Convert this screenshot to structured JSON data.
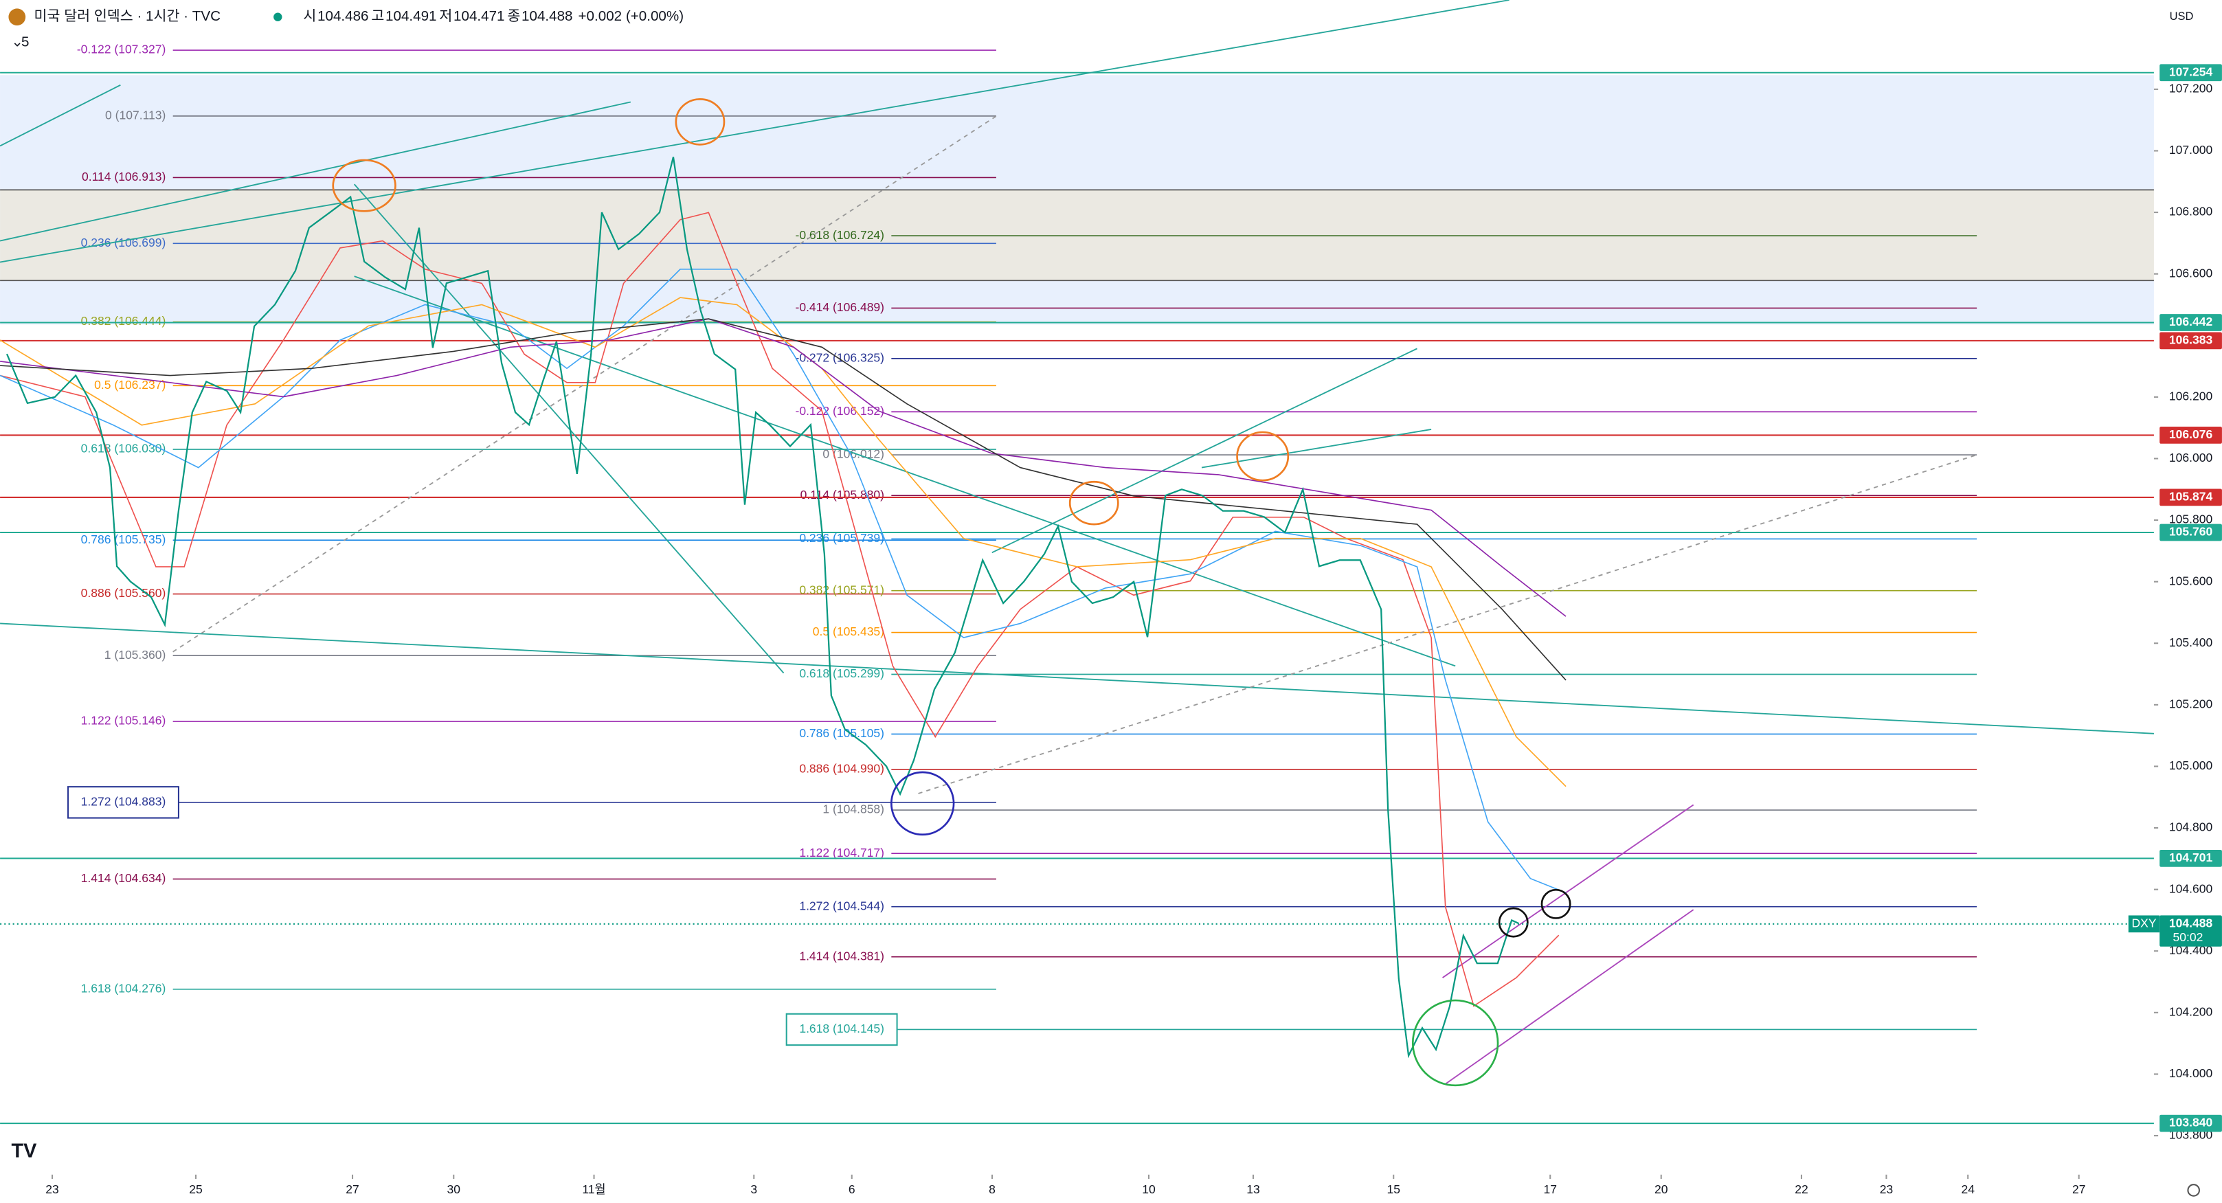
{
  "header": {
    "title": "미국 달러 인덱스 · 1시간 · TVC",
    "ohlc": [
      {
        "key": "시",
        "value": 104.486
      },
      {
        "key": "고",
        "value": 104.491
      },
      {
        "key": "저",
        "value": 104.471
      },
      {
        "key": "종",
        "value": 104.488
      }
    ],
    "change": "+0.002 (+0.00%)",
    "indicators": "5",
    "currency": "USD"
  },
  "chart_data": {
    "type": "line",
    "color": "#089981",
    "x": [
      2.1,
      8.4,
      16.8,
      23.2,
      29.5,
      33.7,
      35.8,
      40.0,
      46.3,
      50.5,
      54.7,
      58.9,
      63.2,
      69.5,
      73.7,
      77.9,
      84.2,
      90.5,
      94.7,
      101.1,
      107.4,
      111.6,
      117.9,
      124.2,
      128.4,
      132.6,
      136.8,
      143.2,
      149.5,
      153.7,
      157.9,
      162.1,
      166.3,
      170.5,
      176.8,
      181.1,
      184.4,
      189.5,
      195.8,
      202.1,
      206.3,
      210.5,
      214.7,
      218.9,
      225.3,
      228.2,
      231.6,
      235.8,
      242.1,
      248.4,
      252.6,
      254.7,
      258.9,
      265.3,
      271.6,
      275.8,
      280.0,
      286.3,
      292.6,
      301.1,
      307.4,
      313.7,
      320.0,
      324.2,
      328.4,
      334.7,
      341.1,
      347.4,
      351.6,
      357.1,
      362.1,
      368.4,
      374.7,
      381.1,
      387.4,
      393.7,
      399.2,
      404.2,
      410.5,
      416.8,
      423.2,
      425.3,
      428.6,
      431.6,
      435.8,
      440.0,
      444.2,
      448.4,
      452.6,
      458.9,
      463.2,
      465.3
    ],
    "values": [
      106.34,
      106.18,
      106.2,
      106.27,
      106.15,
      105.97,
      105.65,
      105.6,
      105.55,
      105.46,
      105.83,
      106.15,
      106.25,
      106.22,
      106.15,
      106.43,
      106.5,
      106.61,
      106.75,
      106.8,
      106.85,
      106.64,
      106.59,
      106.55,
      106.75,
      106.36,
      106.57,
      106.59,
      106.61,
      106.31,
      106.15,
      106.11,
      106.25,
      106.38,
      105.95,
      106.34,
      106.8,
      106.68,
      106.73,
      106.8,
      106.98,
      106.68,
      106.48,
      106.34,
      106.29,
      105.85,
      106.15,
      106.11,
      106.04,
      106.11,
      105.69,
      105.23,
      105.12,
      105.07,
      105.0,
      104.91,
      105.02,
      105.25,
      105.37,
      105.67,
      105.53,
      105.6,
      105.69,
      105.78,
      105.6,
      105.53,
      105.55,
      105.6,
      105.42,
      105.88,
      105.9,
      105.88,
      105.83,
      105.83,
      105.81,
      105.76,
      105.9,
      105.65,
      105.67,
      105.67,
      105.51,
      104.86,
      104.31,
      104.06,
      104.15,
      104.08,
      104.22,
      104.45,
      104.36,
      104.36,
      104.5,
      104.49
    ],
    "xlim": [
      0,
      660
    ],
    "xticks": [
      {
        "value": 16,
        "label": "23"
      },
      {
        "value": 60,
        "label": "25"
      },
      {
        "value": 108,
        "label": "27"
      },
      {
        "value": 139,
        "label": "30"
      },
      {
        "value": 182,
        "label": "11월"
      },
      {
        "value": 231,
        "label": "3"
      },
      {
        "value": 261,
        "label": "6"
      },
      {
        "value": 304,
        "label": "8"
      },
      {
        "value": 352,
        "label": "10"
      },
      {
        "value": 384,
        "label": "13"
      },
      {
        "value": 427,
        "label": "15"
      },
      {
        "value": 475,
        "label": "17"
      },
      {
        "value": 509,
        "label": "20"
      },
      {
        "value": 552,
        "label": "22"
      },
      {
        "value": 578,
        "label": "23"
      },
      {
        "value": 603,
        "label": "24"
      },
      {
        "value": 637,
        "label": "27"
      }
    ],
    "ylim": [
      103.77,
      107.49
    ],
    "yticks": [
      {
        "value": 103.8,
        "label": "103.800"
      },
      {
        "value": 104.0,
        "label": "104.000"
      },
      {
        "value": 104.2,
        "label": "104.200"
      },
      {
        "value": 104.4,
        "label": "104.400"
      },
      {
        "value": 104.6,
        "label": "104.600"
      },
      {
        "value": 104.8,
        "label": "104.800"
      },
      {
        "value": 105.0,
        "label": "105.000"
      },
      {
        "value": 105.2,
        "label": "105.200"
      },
      {
        "value": 105.4,
        "label": "105.400"
      },
      {
        "value": 105.6,
        "label": "105.600"
      },
      {
        "value": 105.8,
        "label": "105.800"
      },
      {
        "value": 106.0,
        "label": "106.000"
      },
      {
        "value": 106.2,
        "label": "106.200"
      },
      {
        "value": 106.6,
        "label": "106.600"
      },
      {
        "value": 106.8,
        "label": "106.800"
      },
      {
        "value": 107.0,
        "label": "107.000"
      },
      {
        "value": 107.2,
        "label": "107.200"
      }
    ],
    "grid": false,
    "price_tags": [
      {
        "value": 107.254,
        "label": "107.254",
        "color": "#22ab94"
      },
      {
        "value": 106.442,
        "label": "106.442",
        "color": "#22ab94"
      },
      {
        "value": 106.383,
        "label": "106.383",
        "color": "#d32f2f"
      },
      {
        "value": 106.076,
        "label": "106.076",
        "color": "#d32f2f"
      },
      {
        "value": 105.874,
        "label": "105.874",
        "color": "#d32f2f"
      },
      {
        "value": 105.76,
        "label": "105.760",
        "color": "#22ab94"
      },
      {
        "value": 104.701,
        "label": "104.701",
        "color": "#22ab94"
      },
      {
        "value": 103.84,
        "label": "103.840",
        "color": "#22ab94"
      }
    ],
    "last": {
      "symbol": "DXY",
      "value": 104.488,
      "countdown": "50:02",
      "color": "#089981"
    },
    "fib_left": [
      {
        "label": "-0.122 (107.327)",
        "value": 107.327,
        "color": "#9c27b0"
      },
      {
        "label": "0 (107.113)",
        "value": 107.113,
        "color": "#787b86"
      },
      {
        "label": "0.114 (106.913)",
        "value": 106.913,
        "color": "#880e4f"
      },
      {
        "label": "0.236 (106.699)",
        "value": 106.699,
        "color": "#3d6bc8"
      },
      {
        "label": "0.382 (106.444)",
        "value": 106.444,
        "color": "#9aa521"
      },
      {
        "label": "0.5 (106.237)",
        "value": 106.237,
        "color": "#ff9800"
      },
      {
        "label": "0.618 (106.030)",
        "value": 106.03,
        "color": "#26a69a"
      },
      {
        "label": "0.786 (105.735)",
        "value": 105.735,
        "color": "#1e88e5"
      },
      {
        "label": "0.886 (105.560)",
        "value": 105.56,
        "color": "#c62828"
      },
      {
        "label": "1 (105.360)",
        "value": 105.36,
        "color": "#787b86"
      },
      {
        "label": "1.122 (105.146)",
        "value": 105.146,
        "color": "#9c27b0"
      },
      {
        "label": "1.272 (104.883)",
        "value": 104.883,
        "color": "#283593",
        "boxed": true
      },
      {
        "label": "1.414 (104.634)",
        "value": 104.634,
        "color": "#880e4f"
      },
      {
        "label": "1.618 (104.276)",
        "value": 104.276,
        "color": "#26a69a"
      }
    ],
    "fib_right": [
      {
        "label": "-0.618 (106.724)",
        "value": 106.724,
        "color": "#33691e"
      },
      {
        "label": "-0.414 (106.489)",
        "value": 106.489,
        "color": "#880e4f"
      },
      {
        "label": "-0.272 (106.325)",
        "value": 106.325,
        "color": "#283593"
      },
      {
        "label": "-0.122 (106.152)",
        "value": 106.152,
        "color": "#9c27b0"
      },
      {
        "label": "0 (106.012)",
        "value": 106.012,
        "color": "#787b86"
      },
      {
        "label": "0.114 (105.880)",
        "value": 105.88,
        "color": "#880e4f"
      },
      {
        "label": "0.236 (105.739)",
        "value": 105.739,
        "color": "#1e88e5"
      },
      {
        "label": "0.382 (105.571)",
        "value": 105.571,
        "color": "#9aa521"
      },
      {
        "label": "0.5 (105.435)",
        "value": 105.435,
        "color": "#ff9800"
      },
      {
        "label": "0.618 (105.299)",
        "value": 105.299,
        "color": "#26a69a"
      },
      {
        "label": "0.786 (105.105)",
        "value": 105.105,
        "color": "#1e88e5"
      },
      {
        "label": "0.886 (104.990)",
        "value": 104.99,
        "color": "#c62828"
      },
      {
        "label": "1 (104.858)",
        "value": 104.858,
        "color": "#787b86"
      },
      {
        "label": "1.122 (104.717)",
        "value": 104.717,
        "color": "#9c27b0"
      },
      {
        "label": "1.272 (104.544)",
        "value": 104.544,
        "color": "#283593"
      },
      {
        "label": "1.414 (104.381)",
        "value": 104.381,
        "color": "#880e4f"
      },
      {
        "label": "1.618 (104.145)",
        "value": 104.145,
        "color": "#26a69a",
        "boxed": true
      }
    ]
  }
}
